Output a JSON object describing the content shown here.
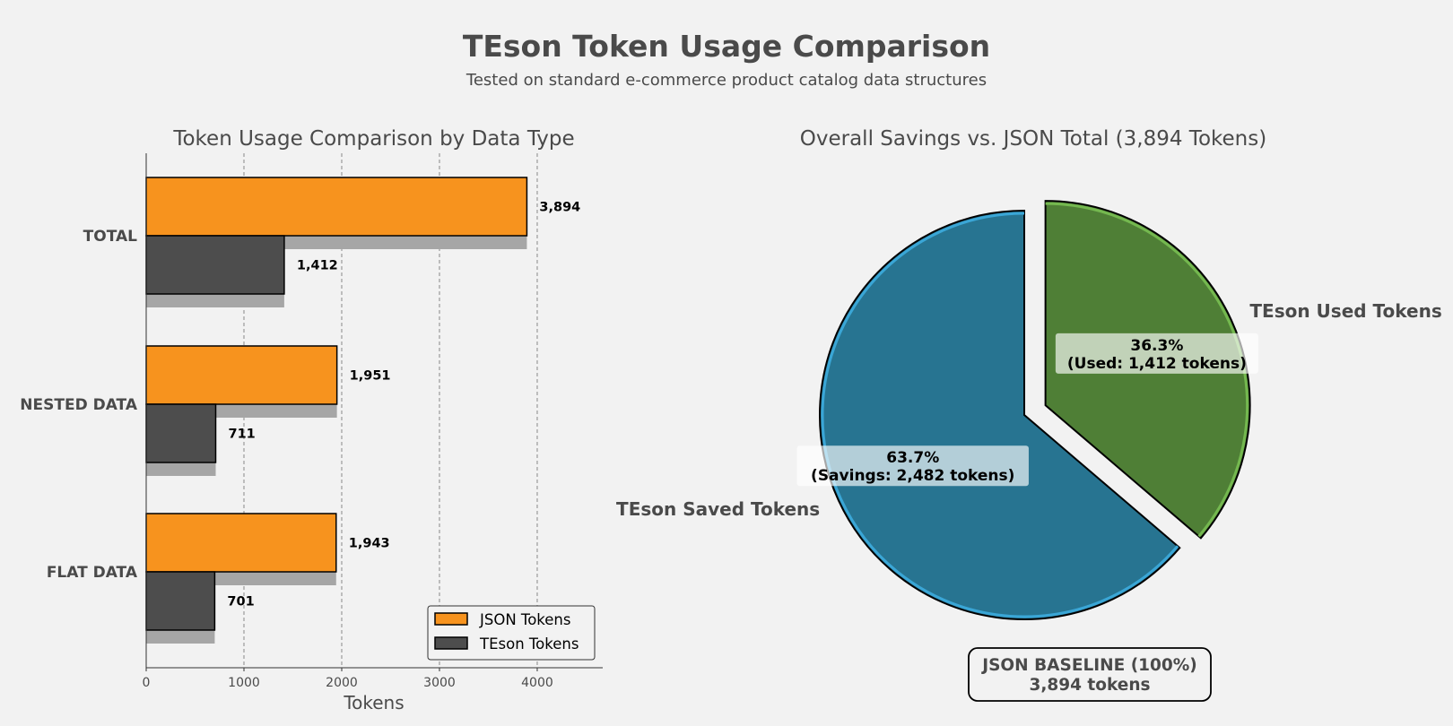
{
  "title": "TEson Token Usage Comparison",
  "subtitle": "Tested on standard e-commerce product catalog data structures",
  "colors": {
    "json": "#f7931e",
    "teson": "#4d4d4d",
    "shadow": "#a6a6a6",
    "saved": "#277491",
    "saved_edge": "#3aa6d6",
    "used": "#4f7f36",
    "used_edge": "#74b84f",
    "background": "#f2f2f2"
  },
  "chart_data": [
    {
      "type": "bar",
      "orientation": "horizontal",
      "title": "Token Usage Comparison by Data Type",
      "xlabel": "Tokens",
      "ylabel": "",
      "categories": [
        "TOTAL",
        "NESTED DATA",
        "FLAT DATA"
      ],
      "series": [
        {
          "name": "JSON Tokens",
          "values": [
            3894,
            1951,
            1943
          ],
          "labels": [
            "3,894",
            "1,951",
            "1,943"
          ]
        },
        {
          "name": "TEson Tokens",
          "values": [
            1412,
            711,
            701
          ],
          "labels": [
            "1,412",
            "711",
            "701"
          ]
        }
      ],
      "xlim": [
        0,
        4670
      ],
      "xticks": [
        0,
        1000,
        2000,
        3000,
        4000
      ],
      "grid": "x, dashed",
      "legend": "bottom-right"
    },
    {
      "type": "pie",
      "title": "Overall Savings vs. JSON Total (3,894 Tokens)",
      "slices": [
        {
          "label": "TEson Used Tokens",
          "value": 1412,
          "percent": "36.3%",
          "detail": "(Used: 1,412 tokens)",
          "exploded": true
        },
        {
          "label": "TEson Saved Tokens",
          "value": 2482,
          "percent": "63.7%",
          "detail": "(Savings: 2,482 tokens)",
          "exploded": false
        }
      ],
      "total": 3894,
      "baseline_note": {
        "line1": "JSON BASELINE (100%)",
        "line2": "3,894 tokens"
      }
    }
  ]
}
